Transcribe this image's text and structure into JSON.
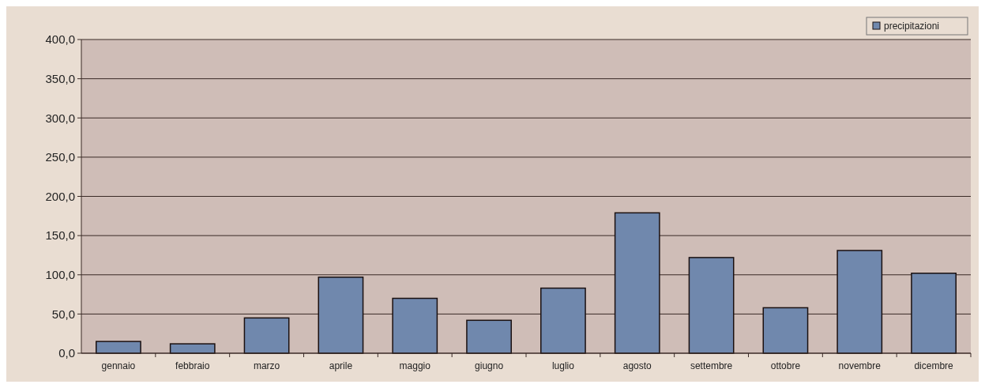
{
  "chart_data": {
    "type": "bar",
    "categories": [
      "gennaio",
      "febbraio",
      "marzo",
      "aprile",
      "maggio",
      "giugno",
      "luglio",
      "agosto",
      "settembre",
      "ottobre",
      "novembre",
      "dicembre"
    ],
    "series": [
      {
        "name": "precipitazioni",
        "color": "#7088ad",
        "values": [
          15,
          12,
          45,
          97,
          70,
          42,
          83,
          179,
          122,
          58,
          131,
          102
        ]
      }
    ],
    "ylim": [
      0,
      400
    ],
    "yticks": [
      {
        "value": 0,
        "label": "0,0"
      },
      {
        "value": 50,
        "label": "50,0"
      },
      {
        "value": 100,
        "label": "100,0"
      },
      {
        "value": 150,
        "label": "150,0"
      },
      {
        "value": 200,
        "label": "200,0"
      },
      {
        "value": 250,
        "label": "250,0"
      },
      {
        "value": 300,
        "label": "300,0"
      },
      {
        "value": 350,
        "label": "350,0"
      },
      {
        "value": 400,
        "label": "400,0"
      }
    ],
    "grid": "y",
    "legend": "top right"
  }
}
